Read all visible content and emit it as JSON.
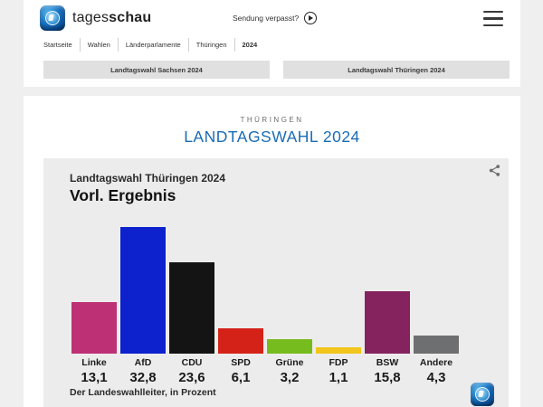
{
  "header": {
    "brand": {
      "regular": "tages",
      "bold": "schau"
    },
    "sendung_verpasst": "Sendung verpasst?"
  },
  "breadcrumb": {
    "items": [
      "Startseite",
      "Wahlen",
      "Länderparlamente",
      "Thüringen",
      "2024"
    ]
  },
  "quick_links": {
    "sachsen": "Landtagswahl Sachsen 2024",
    "thueringen": "Landtagswahl Thüringen 2024"
  },
  "page": {
    "kicker": "THÜRINGEN",
    "title": "LANDTAGSWAHL 2024"
  },
  "chart": {
    "subtitle": "Landtagswahl Thüringen 2024",
    "title": "Vorl. Ergebnis",
    "source": "Der Landeswahlleiter, in Prozent"
  },
  "chart_data": {
    "type": "bar",
    "title": "Landtagswahl Thüringen 2024 — Vorl. Ergebnis",
    "ylabel": "Prozent",
    "source": "Der Landeswahlleiter",
    "categories": [
      "Linke",
      "AfD",
      "CDU",
      "SPD",
      "Grüne",
      "FDP",
      "BSW",
      "Andere"
    ],
    "values": [
      13.1,
      32.8,
      23.6,
      6.1,
      3.2,
      1.1,
      15.8,
      4.3
    ],
    "display_values": [
      "13,1",
      "32,8",
      "23,6",
      "6,1",
      "3,2",
      "1,1",
      "15,8",
      "4,3"
    ],
    "bar_colors": [
      "#be3075",
      "#0d21cd",
      "#141414",
      "#d52219",
      "#77bc1f",
      "#f2c51c",
      "#85235f",
      "#6e6f71"
    ],
    "ylim": [
      0,
      35
    ],
    "grid": false,
    "legend": false
  },
  "colors": {
    "accent_blue": "#1b6cb5",
    "page_bg": "#efefef",
    "panel_bg": "#ececec",
    "button_bg": "#e0e0e0"
  }
}
